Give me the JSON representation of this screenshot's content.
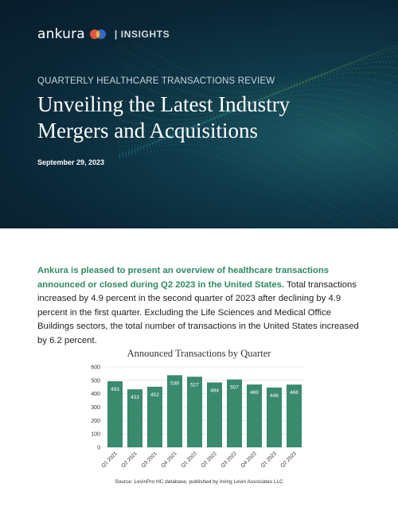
{
  "brand": {
    "name": "ankura",
    "section": "| INSIGHTS"
  },
  "header": {
    "kicker": "QUARTERLY HEALTHCARE TRANSACTIONS REVIEW",
    "title_line1": "Unveiling the Latest Industry",
    "title_line2": "Mergers and Acquisitions",
    "date": "September 29, 2023"
  },
  "intro": {
    "lead": "Ankura is pleased to present an overview of healthcare transactions announced or closed during Q2 2023 in the United States.",
    "body": " Total transactions increased by 4.9 percent in the second quarter of 2023 after declining by 4.9 percent in the first quarter. Excluding the Life Sciences and Medical Office Buildings sectors, the total number of transactions in the United States increased by 6.2 percent."
  },
  "colors": {
    "bar": "#3a8a6e",
    "lead_text": "#2f8a63",
    "hero_bg": "#0a2636"
  },
  "chart_data": {
    "type": "bar",
    "title": "Announced Transactions by Quarter",
    "categories": [
      "Q1 2021",
      "Q2 2021",
      "Q3 2021",
      "Q4 2021",
      "Q1 2022",
      "Q2 2022",
      "Q3 2022",
      "Q4 2022",
      "Q1 2023",
      "Q2 2023"
    ],
    "values": [
      493,
      433,
      452,
      538,
      527,
      484,
      507,
      469,
      446,
      468
    ],
    "ylim": [
      0,
      600
    ],
    "yticks": [
      0,
      100,
      200,
      300,
      400,
      500,
      600
    ],
    "grid": true
  },
  "source": "Source: LevinPro HC database, published by Irving Levin Associates LLC"
}
